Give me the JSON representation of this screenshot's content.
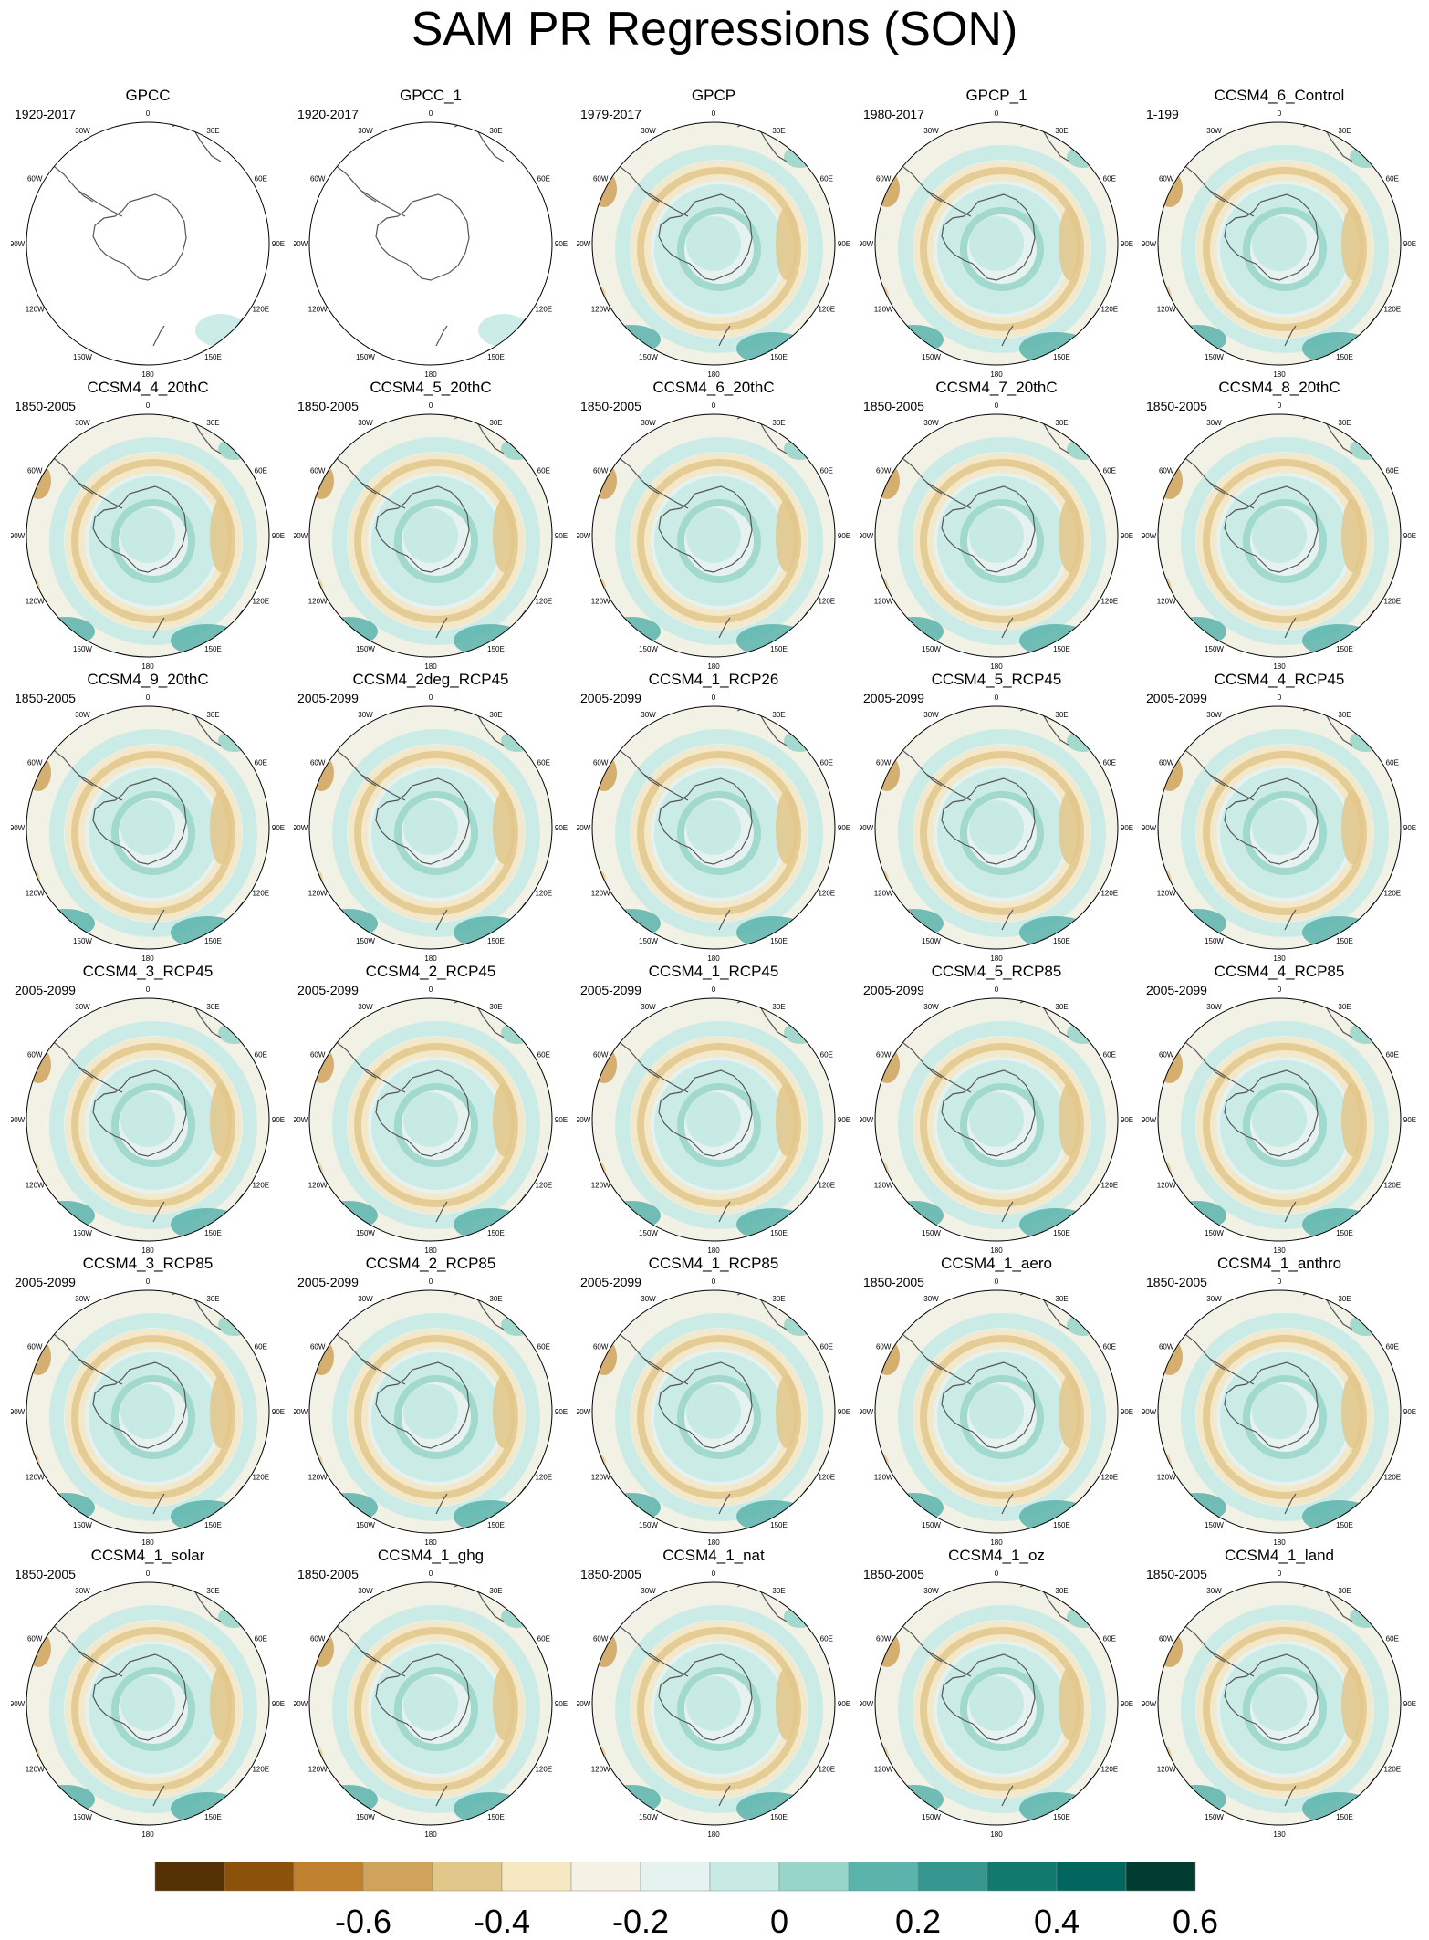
{
  "title": "SAM PR Regressions (SON)",
  "lon_labels": [
    "0",
    "30E",
    "60E",
    "90E",
    "120E",
    "150E",
    "180",
    "150W",
    "120W",
    "90W",
    "60W",
    "30W"
  ],
  "panels": [
    {
      "name": "GPCC",
      "period": "1920-2017"
    },
    {
      "name": "GPCC_1",
      "period": "1920-2017"
    },
    {
      "name": "GPCP",
      "period": "1979-2017"
    },
    {
      "name": "GPCP_1",
      "period": "1980-2017"
    },
    {
      "name": "CCSM4_6_Control",
      "period": "1-199"
    },
    {
      "name": "CCSM4_4_20thC",
      "period": "1850-2005"
    },
    {
      "name": "CCSM4_5_20thC",
      "period": "1850-2005"
    },
    {
      "name": "CCSM4_6_20thC",
      "period": "1850-2005"
    },
    {
      "name": "CCSM4_7_20thC",
      "period": "1850-2005"
    },
    {
      "name": "CCSM4_8_20thC",
      "period": "1850-2005"
    },
    {
      "name": "CCSM4_9_20thC",
      "period": "1850-2005"
    },
    {
      "name": "CCSM4_2deg_RCP45",
      "period": "2005-2099"
    },
    {
      "name": "CCSM4_1_RCP26",
      "period": "2005-2099"
    },
    {
      "name": "CCSM4_5_RCP45",
      "period": "2005-2099"
    },
    {
      "name": "CCSM4_4_RCP45",
      "period": "2005-2099"
    },
    {
      "name": "CCSM4_3_RCP45",
      "period": "2005-2099"
    },
    {
      "name": "CCSM4_2_RCP45",
      "period": "2005-2099"
    },
    {
      "name": "CCSM4_1_RCP45",
      "period": "2005-2099"
    },
    {
      "name": "CCSM4_5_RCP85",
      "period": "2005-2099"
    },
    {
      "name": "CCSM4_4_RCP85",
      "period": "2005-2099"
    },
    {
      "name": "CCSM4_3_RCP85",
      "period": "2005-2099"
    },
    {
      "name": "CCSM4_2_RCP85",
      "period": "2005-2099"
    },
    {
      "name": "CCSM4_1_RCP85",
      "period": "2005-2099"
    },
    {
      "name": "CCSM4_1_aero",
      "period": "1850-2005"
    },
    {
      "name": "CCSM4_1_anthro",
      "period": "1850-2005"
    },
    {
      "name": "CCSM4_1_solar",
      "period": "1850-2005"
    },
    {
      "name": "CCSM4_1_ghg",
      "period": "1850-2005"
    },
    {
      "name": "CCSM4_1_nat",
      "period": "1850-2005"
    },
    {
      "name": "CCSM4_1_oz",
      "period": "1850-2005"
    },
    {
      "name": "CCSM4_1_land",
      "period": "1850-2005"
    }
  ],
  "colorbar": {
    "colors": [
      "#543005",
      "#8c510a",
      "#bf812d",
      "#d0a35a",
      "#e2c78b",
      "#f6e8c3",
      "#f5f1e4",
      "#e5f2f0",
      "#c7eae5",
      "#97d5c9",
      "#5ab4ac",
      "#35978f",
      "#12796f",
      "#01665e",
      "#003c30"
    ],
    "tick_labels": [
      "-0.6",
      "-0.4",
      "-0.2",
      "0",
      "0.2",
      "0.4",
      "0.6"
    ]
  }
}
